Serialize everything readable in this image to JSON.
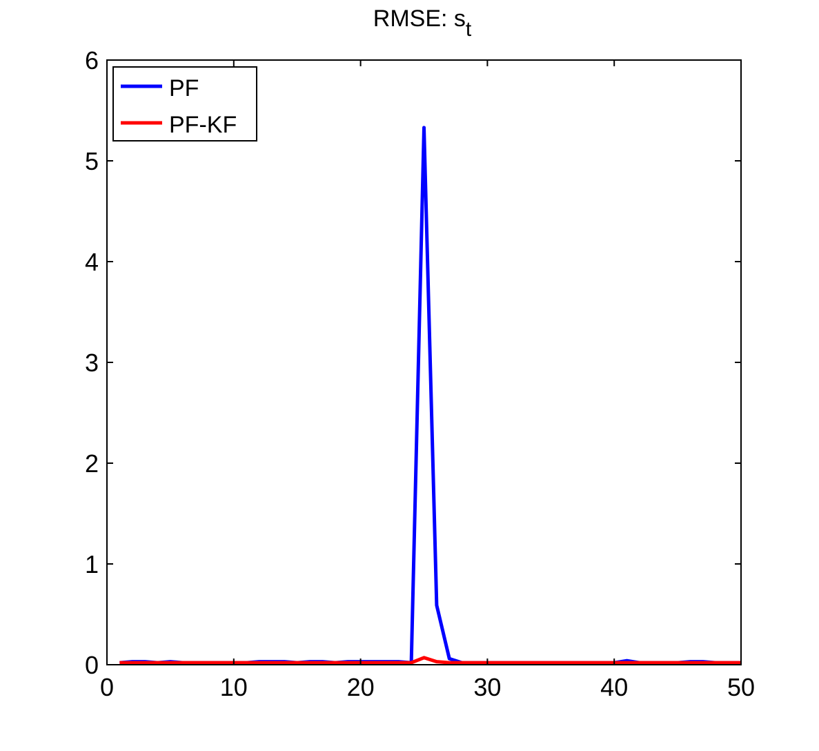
{
  "chart_data": {
    "type": "line",
    "title": "RMSE: s",
    "title_subscript": "t",
    "xlabel": "",
    "ylabel": "",
    "xlim": [
      0,
      50
    ],
    "ylim": [
      0,
      6
    ],
    "xticks": [
      0,
      10,
      20,
      30,
      40,
      50
    ],
    "yticks": [
      0,
      1,
      2,
      3,
      4,
      5,
      6
    ],
    "grid": false,
    "legend_position": "top-left",
    "x": [
      1,
      2,
      3,
      4,
      5,
      6,
      7,
      8,
      9,
      10,
      11,
      12,
      13,
      14,
      15,
      16,
      17,
      18,
      19,
      20,
      21,
      22,
      23,
      24,
      25,
      26,
      27,
      28,
      29,
      30,
      31,
      32,
      33,
      34,
      35,
      36,
      37,
      38,
      39,
      40,
      41,
      42,
      43,
      44,
      45,
      46,
      47,
      48,
      49,
      50
    ],
    "series": [
      {
        "name": "PF",
        "color": "#0000ff",
        "values": [
          0.02,
          0.03,
          0.03,
          0.02,
          0.03,
          0.02,
          0.02,
          0.02,
          0.02,
          0.02,
          0.02,
          0.03,
          0.03,
          0.03,
          0.02,
          0.03,
          0.03,
          0.02,
          0.03,
          0.03,
          0.03,
          0.03,
          0.03,
          0.02,
          5.33,
          0.59,
          0.06,
          0.02,
          0.02,
          0.02,
          0.02,
          0.02,
          0.02,
          0.02,
          0.02,
          0.02,
          0.02,
          0.02,
          0.02,
          0.02,
          0.04,
          0.02,
          0.02,
          0.02,
          0.02,
          0.03,
          0.03,
          0.02,
          0.02,
          0.02
        ]
      },
      {
        "name": "PF-KF",
        "color": "#ff0000",
        "values": [
          0.02,
          0.02,
          0.02,
          0.02,
          0.02,
          0.02,
          0.02,
          0.02,
          0.02,
          0.02,
          0.02,
          0.02,
          0.02,
          0.02,
          0.02,
          0.02,
          0.02,
          0.02,
          0.02,
          0.02,
          0.02,
          0.02,
          0.02,
          0.02,
          0.07,
          0.03,
          0.02,
          0.02,
          0.02,
          0.02,
          0.02,
          0.02,
          0.02,
          0.02,
          0.02,
          0.02,
          0.02,
          0.02,
          0.02,
          0.02,
          0.02,
          0.02,
          0.02,
          0.02,
          0.02,
          0.02,
          0.02,
          0.02,
          0.02,
          0.02
        ]
      }
    ]
  }
}
